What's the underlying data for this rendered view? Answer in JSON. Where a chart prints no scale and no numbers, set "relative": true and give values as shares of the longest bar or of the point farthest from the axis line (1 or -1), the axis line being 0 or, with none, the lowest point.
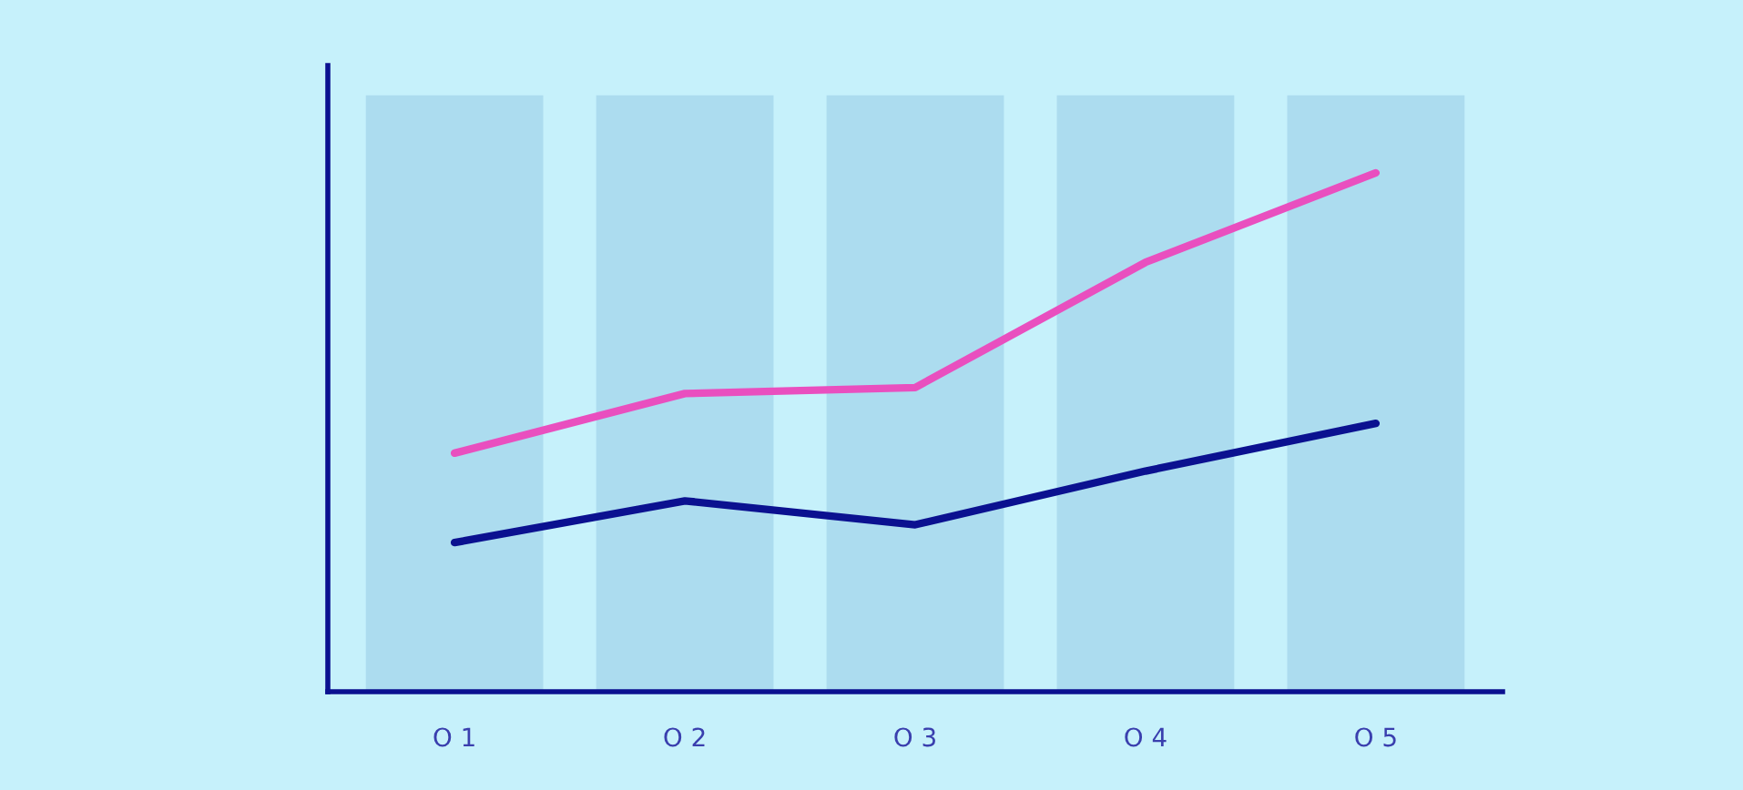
{
  "chart_data": {
    "type": "bar",
    "relative": true,
    "categories": [
      "O 1",
      "O 2",
      "O 3",
      "O 4",
      "O 5"
    ],
    "series": [
      {
        "color": "#acdcef",
        "values": [
          1,
          1,
          1,
          1,
          1
        ]
      },
      {
        "type": "line",
        "color": "#e94fbf",
        "values": [
          0.4,
          0.5,
          0.51,
          0.72,
          0.87
        ]
      },
      {
        "type": "line",
        "color": "#0b1190",
        "values": [
          0.25,
          0.32,
          0.28,
          0.37,
          0.45
        ]
      }
    ],
    "legend": false,
    "grid": false
  }
}
